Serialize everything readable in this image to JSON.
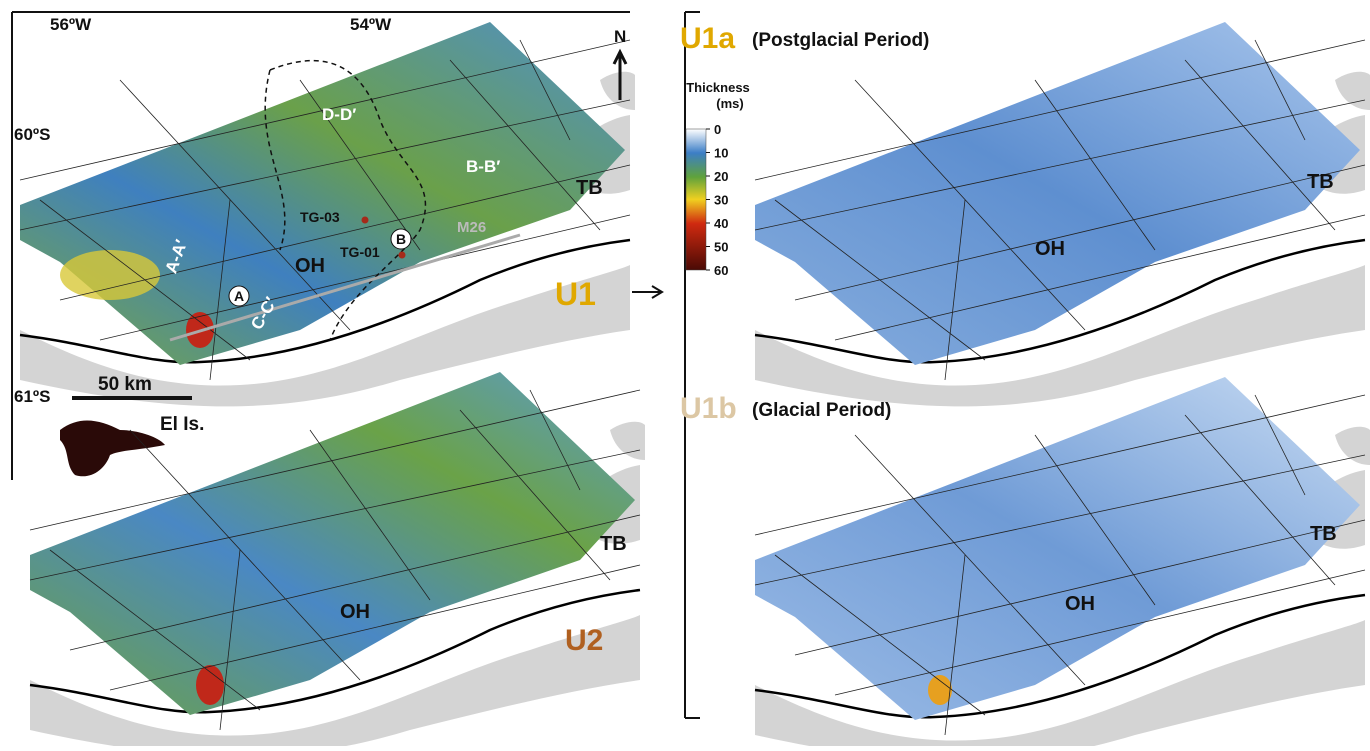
{
  "map_u1": {
    "lon_labels": [
      "56ºW",
      "54ºW"
    ],
    "lat_labels": [
      "60ºS",
      "61ºS"
    ],
    "north": "N",
    "profiles": [
      "A-A′",
      "B-B′",
      "C-C′",
      "D-D′"
    ],
    "cores": [
      "TG-03",
      "TG-01"
    ],
    "line": "M26",
    "sites": [
      "A",
      "B"
    ],
    "basins": [
      "OH",
      "TB"
    ],
    "scale_bar": "50 km",
    "island": "El Is.",
    "unit": "U1"
  },
  "map_u2": {
    "basins": [
      "OH",
      "TB"
    ],
    "unit": "U2"
  },
  "map_u1a": {
    "unit": "U1a",
    "period": "(Postglacial Period)",
    "basins": [
      "OH",
      "TB"
    ]
  },
  "map_u1b": {
    "unit": "U1b",
    "period": "(Glacial Period)",
    "basins": [
      "OH",
      "TB"
    ]
  },
  "legend": {
    "title": [
      "Thickness",
      "(ms)"
    ],
    "ticks": [
      0,
      10,
      20,
      30,
      40,
      50,
      60
    ],
    "ylim": [
      0,
      60
    ]
  }
}
